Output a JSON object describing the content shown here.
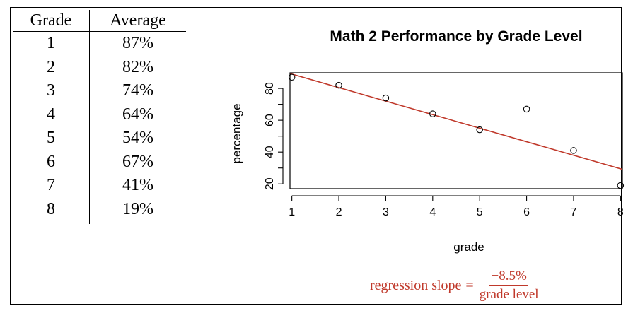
{
  "table": {
    "headers": [
      "Grade",
      "Average"
    ],
    "rows": [
      [
        "1",
        "87%"
      ],
      [
        "2",
        "82%"
      ],
      [
        "3",
        "74%"
      ],
      [
        "4",
        "64%"
      ],
      [
        "5",
        "54%"
      ],
      [
        "6",
        "67%"
      ],
      [
        "7",
        "41%"
      ],
      [
        "8",
        "19%"
      ]
    ]
  },
  "chart_data": {
    "type": "scatter",
    "title": "Math 2 Performance by Grade Level",
    "xlabel": "grade",
    "ylabel": "percentage",
    "x": [
      1,
      2,
      3,
      4,
      5,
      6,
      7,
      8
    ],
    "y": [
      87,
      82,
      74,
      64,
      54,
      67,
      41,
      19
    ],
    "xticks": [
      1,
      2,
      3,
      4,
      5,
      6,
      7,
      8
    ],
    "yticks": [
      20,
      40,
      60,
      80
    ],
    "xlim": [
      0.96,
      8.04
    ],
    "ylim": [
      17,
      89.8
    ],
    "regression_line": {
      "slope": -8.5,
      "intercept": 97.5,
      "color": "#c0392b"
    },
    "marker_color": "#000000",
    "grid": false
  },
  "annotation": {
    "lhs": "regression slope",
    "eq": "=",
    "numerator": "−8.5%",
    "denominator": "grade level"
  }
}
